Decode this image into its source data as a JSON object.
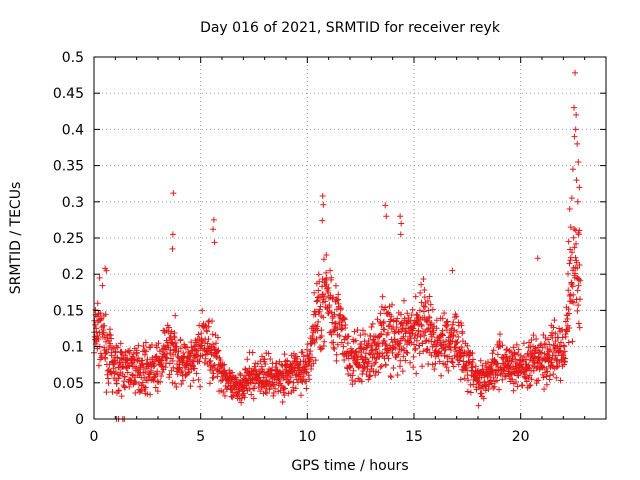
{
  "chart_data": {
    "type": "scatter",
    "title": "Day 016 of 2021, SRMTID for receiver reyk",
    "xlabel": "GPS time / hours",
    "ylabel": "SRMTID / TECUs",
    "xlim": [
      0,
      24
    ],
    "ylim": [
      0,
      0.5
    ],
    "x_ticks": [
      0,
      5,
      10,
      15,
      20
    ],
    "x_tick_labels": [
      "0",
      "5",
      "10",
      "15",
      "20"
    ],
    "y_ticks": [
      0,
      0.05,
      0.1,
      0.15,
      0.2,
      0.25,
      0.3,
      0.35,
      0.4,
      0.45,
      0.5
    ],
    "y_tick_labels": [
      "0",
      "0.05",
      "0.1",
      "0.15",
      "0.2",
      "0.25",
      "0.3",
      "0.35",
      "0.4",
      "0.45",
      "0.5"
    ],
    "grid": true,
    "marker": "+",
    "series": [
      {
        "name": "SRMTID",
        "color": "#e41a1a",
        "profile": [
          [
            0.0,
            0.11
          ],
          [
            0.3,
            0.13
          ],
          [
            0.6,
            0.09
          ],
          [
            1.0,
            0.07
          ],
          [
            2.0,
            0.07
          ],
          [
            3.0,
            0.07
          ],
          [
            3.5,
            0.1
          ],
          [
            4.5,
            0.07
          ],
          [
            5.2,
            0.11
          ],
          [
            5.8,
            0.08
          ],
          [
            6.5,
            0.04
          ],
          [
            7.5,
            0.06
          ],
          [
            9.0,
            0.06
          ],
          [
            10.0,
            0.07
          ],
          [
            10.5,
            0.15
          ],
          [
            11.0,
            0.17
          ],
          [
            11.5,
            0.13
          ],
          [
            12.0,
            0.08
          ],
          [
            13.0,
            0.09
          ],
          [
            13.7,
            0.12
          ],
          [
            14.3,
            0.1
          ],
          [
            15.0,
            0.12
          ],
          [
            15.5,
            0.14
          ],
          [
            16.0,
            0.1
          ],
          [
            17.0,
            0.11
          ],
          [
            18.0,
            0.05
          ],
          [
            19.0,
            0.08
          ],
          [
            20.0,
            0.07
          ],
          [
            21.0,
            0.08
          ],
          [
            22.0,
            0.1
          ],
          [
            22.5,
            0.22
          ],
          [
            22.8,
            0.2
          ]
        ],
        "spikes": [
          [
            3.72,
            0.312
          ],
          [
            3.7,
            0.255
          ],
          [
            3.68,
            0.235
          ],
          [
            5.62,
            0.275
          ],
          [
            5.58,
            0.262
          ],
          [
            5.65,
            0.244
          ],
          [
            10.72,
            0.308
          ],
          [
            10.75,
            0.296
          ],
          [
            10.7,
            0.274
          ],
          [
            13.65,
            0.295
          ],
          [
            13.7,
            0.28
          ],
          [
            14.35,
            0.28
          ],
          [
            14.4,
            0.27
          ],
          [
            14.38,
            0.255
          ],
          [
            0.52,
            0.208
          ],
          [
            0.58,
            0.205
          ],
          [
            16.8,
            0.205
          ],
          [
            20.8,
            0.222
          ],
          [
            22.55,
            0.478
          ],
          [
            22.5,
            0.43
          ],
          [
            22.6,
            0.42
          ],
          [
            22.58,
            0.4
          ],
          [
            22.52,
            0.39
          ],
          [
            22.65,
            0.38
          ],
          [
            22.7,
            0.355
          ],
          [
            22.45,
            0.345
          ],
          [
            22.62,
            0.33
          ],
          [
            22.75,
            0.32
          ],
          [
            22.4,
            0.305
          ],
          [
            22.3,
            0.29
          ],
          [
            22.68,
            0.3
          ],
          [
            22.35,
            0.265
          ],
          [
            22.72,
            0.255
          ],
          [
            22.25,
            0.245
          ]
        ],
        "zeros": [
          [
            1.05,
            0.0
          ],
          [
            1.15,
            0.0
          ],
          [
            1.35,
            0.0
          ],
          [
            1.42,
            0.0
          ]
        ]
      }
    ]
  }
}
